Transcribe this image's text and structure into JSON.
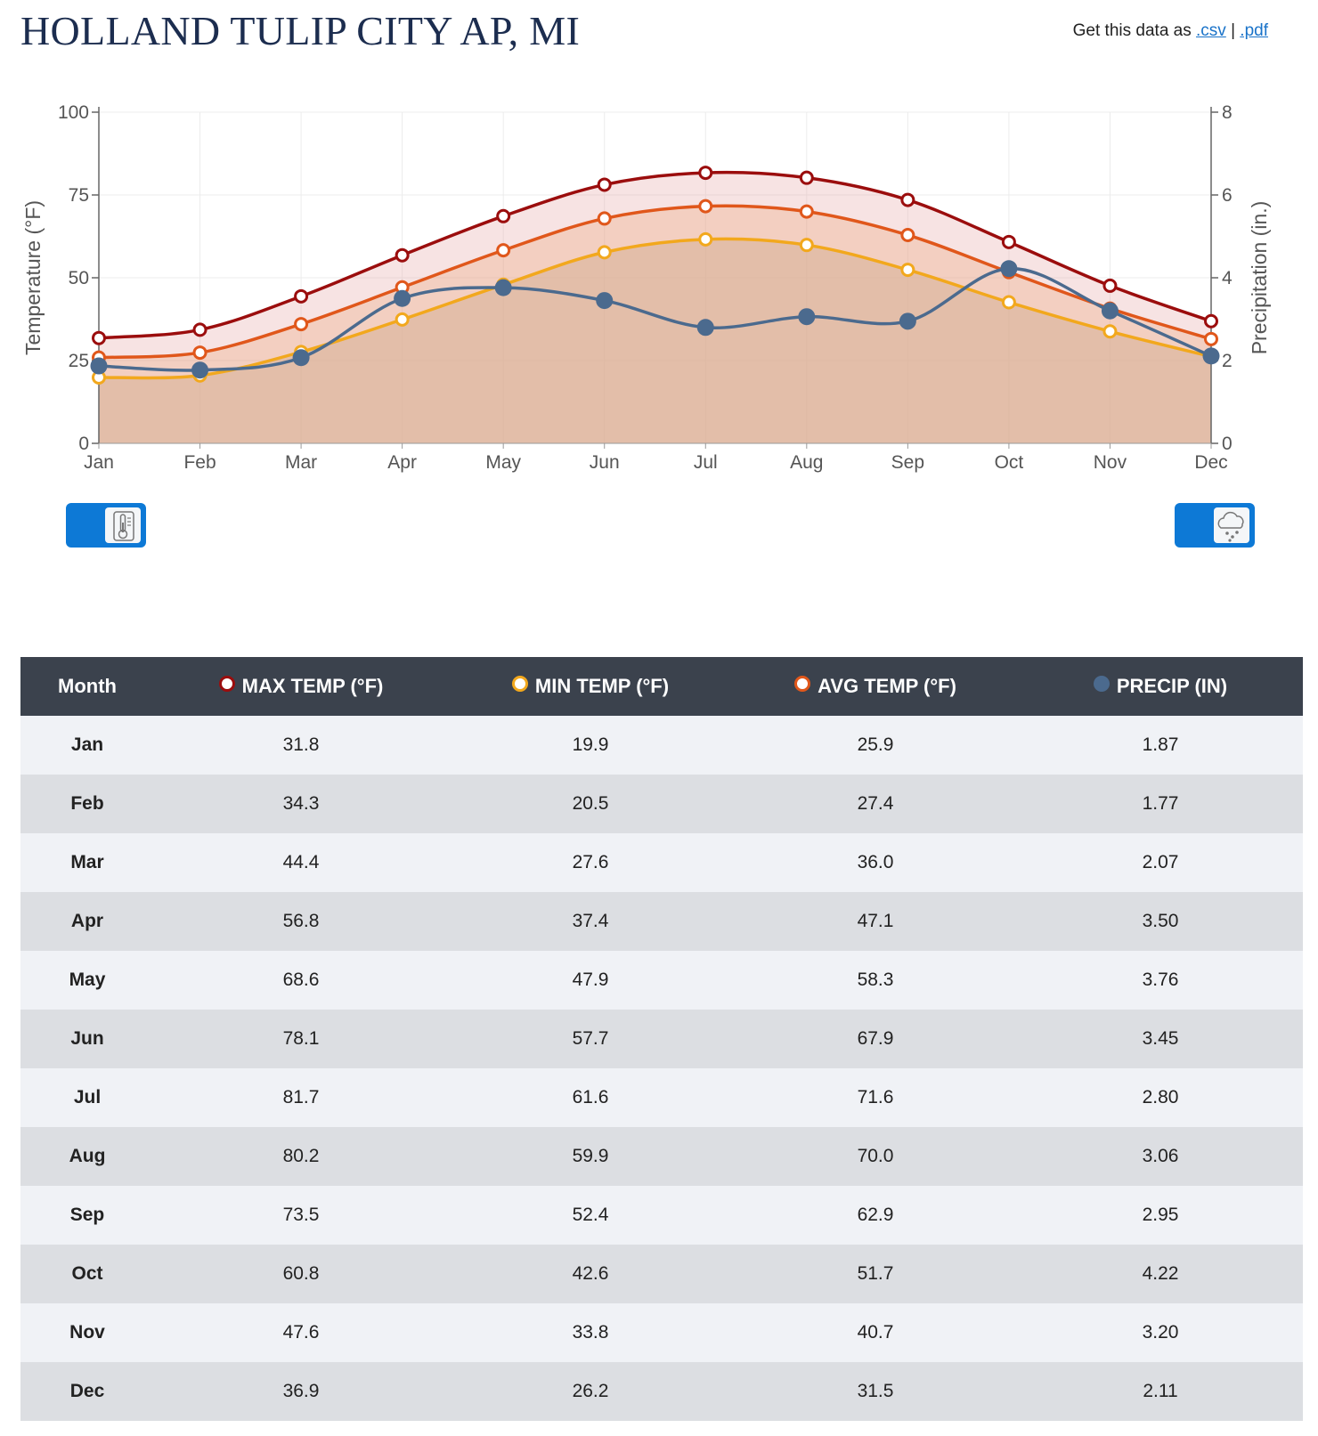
{
  "page": {
    "title": "HOLLAND TULIP CITY AP, MI",
    "download_prefix": "Get this data as",
    "download_csv": ".csv",
    "download_separator": "|",
    "download_pdf": ".pdf"
  },
  "colors": {
    "max": "#9b0d0d",
    "min": "#f2a81d",
    "avg": "#e0571b",
    "precip": "#4b6a8e",
    "toggle": "#0d79d6",
    "table_header": "#3b424d"
  },
  "icons": {
    "temperature_toggle": "thermometer-icon",
    "precip_toggle": "rain-cloud-icon"
  },
  "chart_data": {
    "type": "line",
    "categories": [
      "Jan",
      "Feb",
      "Mar",
      "Apr",
      "May",
      "Jun",
      "Jul",
      "Aug",
      "Sep",
      "Oct",
      "Nov",
      "Dec"
    ],
    "series": [
      {
        "name": "MAX TEMP (°F)",
        "axis": "left",
        "values": [
          31.8,
          34.3,
          44.4,
          56.8,
          68.6,
          78.1,
          81.7,
          80.2,
          73.5,
          60.8,
          47.6,
          36.9
        ]
      },
      {
        "name": "MIN TEMP (°F)",
        "axis": "left",
        "values": [
          19.9,
          20.5,
          27.6,
          37.4,
          47.9,
          57.7,
          61.6,
          59.9,
          52.4,
          42.6,
          33.8,
          26.2
        ]
      },
      {
        "name": "AVG TEMP (°F)",
        "axis": "left",
        "values": [
          25.9,
          27.4,
          36.0,
          47.1,
          58.3,
          67.9,
          71.6,
          70.0,
          62.9,
          51.7,
          40.7,
          31.5
        ]
      },
      {
        "name": "PRECIP (IN)",
        "axis": "right",
        "values": [
          1.87,
          1.77,
          2.07,
          3.5,
          3.76,
          3.45,
          2.8,
          3.06,
          2.95,
          4.22,
          3.2,
          2.11
        ]
      }
    ],
    "ylabel": "Temperature (°F)",
    "y2label": "Precipitation (in.)",
    "ylim": [
      0,
      100
    ],
    "y2lim": [
      0,
      8
    ],
    "yticks": [
      0,
      25,
      50,
      75,
      100
    ],
    "y2ticks": [
      0,
      2,
      4,
      6,
      8
    ],
    "grid": true
  },
  "table": {
    "headers": {
      "month": "Month",
      "max": "MAX TEMP (°F)",
      "min": "MIN TEMP (°F)",
      "avg": "AVG TEMP (°F)",
      "precip": "PRECIP (IN)"
    },
    "rows": [
      {
        "month": "Jan",
        "max": "31.8",
        "min": "19.9",
        "avg": "25.9",
        "precip": "1.87"
      },
      {
        "month": "Feb",
        "max": "34.3",
        "min": "20.5",
        "avg": "27.4",
        "precip": "1.77"
      },
      {
        "month": "Mar",
        "max": "44.4",
        "min": "27.6",
        "avg": "36.0",
        "precip": "2.07"
      },
      {
        "month": "Apr",
        "max": "56.8",
        "min": "37.4",
        "avg": "47.1",
        "precip": "3.50"
      },
      {
        "month": "May",
        "max": "68.6",
        "min": "47.9",
        "avg": "58.3",
        "precip": "3.76"
      },
      {
        "month": "Jun",
        "max": "78.1",
        "min": "57.7",
        "avg": "67.9",
        "precip": "3.45"
      },
      {
        "month": "Jul",
        "max": "81.7",
        "min": "61.6",
        "avg": "71.6",
        "precip": "2.80"
      },
      {
        "month": "Aug",
        "max": "80.2",
        "min": "59.9",
        "avg": "70.0",
        "precip": "3.06"
      },
      {
        "month": "Sep",
        "max": "73.5",
        "min": "52.4",
        "avg": "62.9",
        "precip": "2.95"
      },
      {
        "month": "Oct",
        "max": "60.8",
        "min": "42.6",
        "avg": "51.7",
        "precip": "4.22"
      },
      {
        "month": "Nov",
        "max": "47.6",
        "min": "33.8",
        "avg": "40.7",
        "precip": "3.20"
      },
      {
        "month": "Dec",
        "max": "36.9",
        "min": "26.2",
        "avg": "31.5",
        "precip": "2.11"
      }
    ]
  }
}
